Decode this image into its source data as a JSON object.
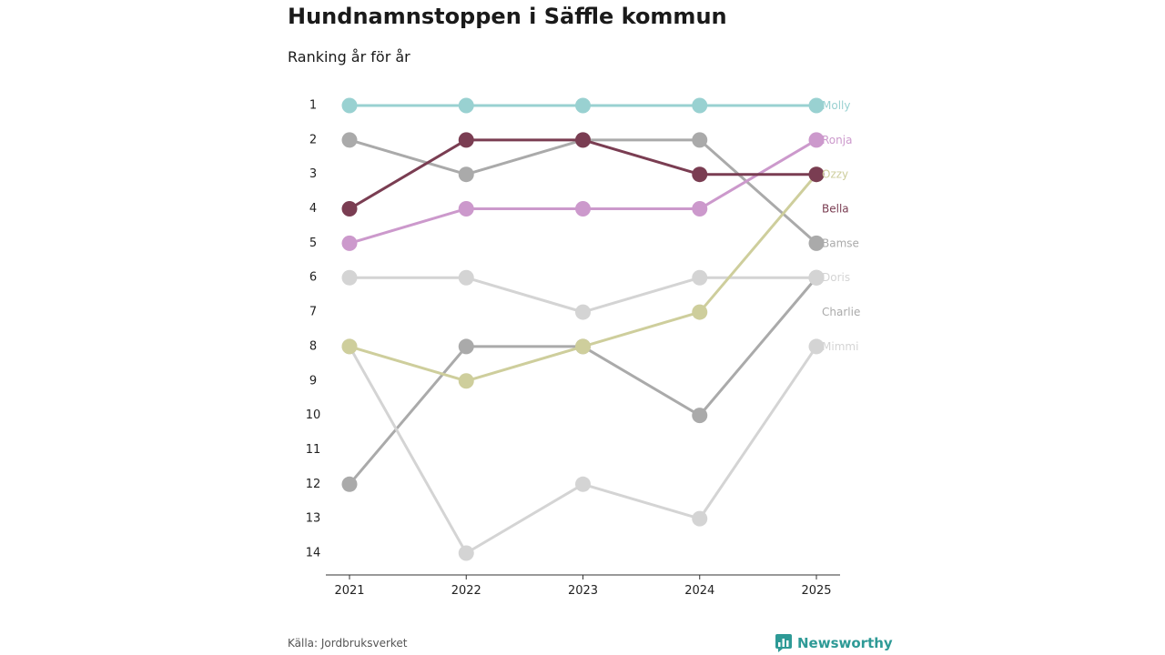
{
  "title": "Hundnamnstoppen i Säffle kommun",
  "subtitle": "Ranking år för år",
  "source": "Källa: Jordbruksverket",
  "brand": "Newsworthy",
  "colors": {
    "brand": "#2e9a96"
  },
  "chart_data": {
    "type": "line",
    "chart_kind": "bump",
    "x": [
      "2021",
      "2022",
      "2023",
      "2024",
      "2025"
    ],
    "y_ticks": [
      1,
      2,
      3,
      4,
      5,
      6,
      7,
      8,
      9,
      10,
      11,
      12,
      13,
      14
    ],
    "ylim": [
      1,
      14
    ],
    "y_inverted": true,
    "xlabel": "",
    "ylabel": "",
    "series": [
      {
        "name": "Charlie",
        "values": [
          12,
          8,
          8,
          10,
          6
        ],
        "color": "#aaaaaa"
      },
      {
        "name": "Mimmi",
        "values": [
          8,
          14,
          12,
          13,
          8
        ],
        "color": "#d4d4d4"
      },
      {
        "name": "Doris",
        "values": [
          6,
          6,
          7,
          6,
          6
        ],
        "color": "#d4d4d4"
      },
      {
        "name": "Bamse",
        "values": [
          2,
          3,
          2,
          2,
          5
        ],
        "color": "#aaaaaa"
      },
      {
        "name": "Ozzy",
        "values": [
          8,
          9,
          8,
          7,
          3
        ],
        "color": "#cece9c"
      },
      {
        "name": "Ronja",
        "values": [
          5,
          4,
          4,
          4,
          2
        ],
        "color": "#cc99cc"
      },
      {
        "name": "Bella",
        "values": [
          4,
          2,
          2,
          3,
          3
        ],
        "color": "#7a3d52"
      },
      {
        "name": "Molly",
        "values": [
          1,
          1,
          1,
          1,
          1
        ],
        "color": "#99d1d1"
      }
    ],
    "end_labels": [
      {
        "text": "Molly",
        "rank": 1,
        "color": "#99d1d1"
      },
      {
        "text": "Ronja",
        "rank": 2,
        "color": "#cc99cc"
      },
      {
        "text": "Ozzy",
        "rank": 3,
        "color": "#cece9c"
      },
      {
        "text": "Bella",
        "rank": 4,
        "color": "#7a3d52"
      },
      {
        "text": "Bamse",
        "rank": 5,
        "color": "#aaaaaa"
      },
      {
        "text": "Doris",
        "rank": 6,
        "color": "#d4d4d4"
      },
      {
        "text": "Charlie",
        "rank": 7,
        "color": "#aaaaaa"
      },
      {
        "text": "Mimmi",
        "rank": 8,
        "color": "#d4d4d4"
      }
    ]
  }
}
